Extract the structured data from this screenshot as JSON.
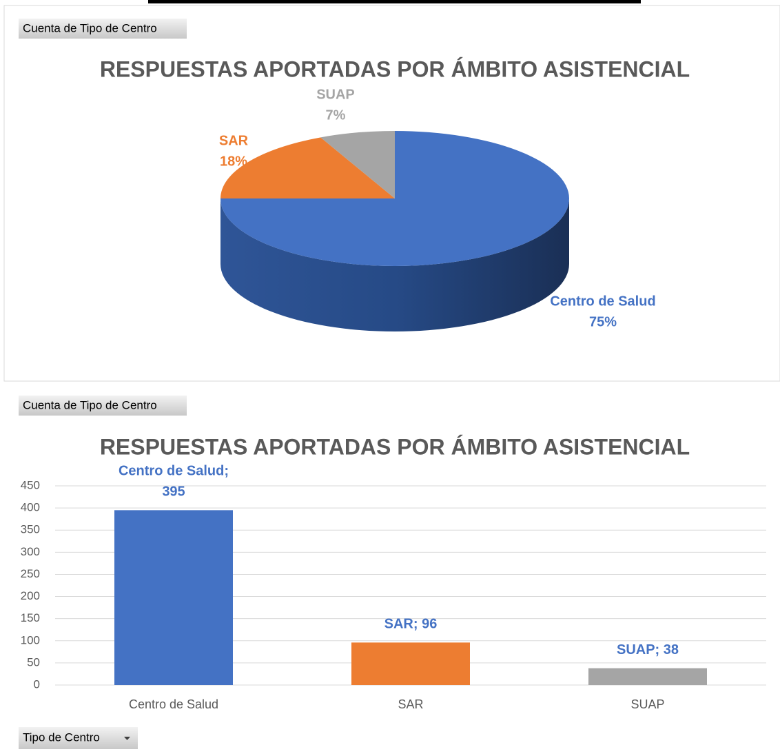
{
  "chart_data": [
    {
      "type": "pie",
      "field_button": "Cuenta de Tipo de Centro",
      "title": "RESPUESTAS APORTADAS POR ÁMBITO ASISTENCIAL",
      "categories": [
        "Centro de Salud",
        "SAR",
        "SUAP"
      ],
      "values": [
        75,
        18,
        7
      ],
      "value_labels": [
        "75%",
        "18%",
        "7%"
      ],
      "colors": [
        "#4472c4",
        "#ed7d31",
        "#a5a5a5"
      ]
    },
    {
      "type": "bar",
      "field_button": "Cuenta de Tipo de Centro",
      "title": "RESPUESTAS APORTADAS POR ÁMBITO ASISTENCIAL",
      "axis_field_button": "Tipo de Centro",
      "categories": [
        "Centro de Salud",
        "SAR",
        "SUAP"
      ],
      "values": [
        395,
        96,
        38
      ],
      "value_labels": [
        "Centro de Salud; 395",
        "SAR; 96",
        "SUAP; 38"
      ],
      "colors": [
        "#4472c4",
        "#ed7d31",
        "#a5a5a5"
      ],
      "ylim": [
        0,
        450
      ],
      "yticks": [
        0,
        50,
        100,
        150,
        200,
        250,
        300,
        350,
        400,
        450
      ],
      "grid": true
    }
  ]
}
